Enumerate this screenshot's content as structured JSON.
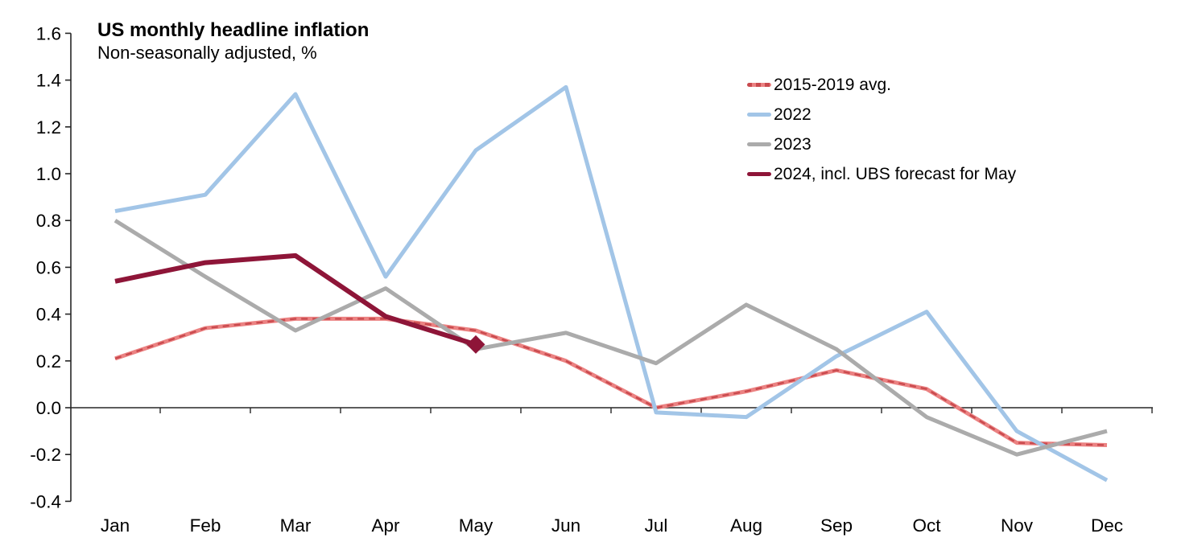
{
  "chart": {
    "title": "US monthly headline inflation",
    "subtitle": "Non-seasonally adjusted, %"
  },
  "chart_data": {
    "type": "line",
    "title": "US monthly headline inflation",
    "subtitle": "Non-seasonally adjusted, %",
    "categories": [
      "Jan",
      "Feb",
      "Mar",
      "Apr",
      "May",
      "Jun",
      "Jul",
      "Aug",
      "Sep",
      "Oct",
      "Nov",
      "Dec"
    ],
    "series": [
      {
        "name": "2015-2019 avg.",
        "color": "#EB8282",
        "overlay_color": "#C94A4E",
        "line_style": "solid-with-dash-overlay",
        "values": [
          0.21,
          0.34,
          0.38,
          0.38,
          0.33,
          0.2,
          0.0,
          0.07,
          0.16,
          0.08,
          -0.15,
          -0.16
        ]
      },
      {
        "name": "2022",
        "color": "#A2C5E7",
        "line_style": "solid",
        "values": [
          0.84,
          0.91,
          1.34,
          0.56,
          1.1,
          1.37,
          -0.02,
          -0.04,
          0.22,
          0.41,
          -0.1,
          -0.31
        ]
      },
      {
        "name": "2023",
        "color": "#ABABAB",
        "line_style": "solid",
        "values": [
          0.8,
          0.56,
          0.33,
          0.51,
          0.25,
          0.32,
          0.19,
          0.44,
          0.25,
          -0.04,
          -0.2,
          -0.1
        ]
      },
      {
        "name": "2024, incl. UBS forecast for May",
        "color": "#8E1538",
        "line_style": "solid",
        "marker_last": "diamond",
        "values": [
          0.54,
          0.62,
          0.65,
          0.39,
          0.27
        ]
      }
    ],
    "ylim": [
      -0.4,
      1.6
    ],
    "ytick_step": 0.2,
    "ytick_labels": [
      "1.6",
      "1.4",
      "1.2",
      "1.0",
      "0.8",
      "0.6",
      "0.4",
      "0.2",
      "0.0",
      "-0.2",
      "-0.4"
    ],
    "grid": false,
    "legend_position": "top-right",
    "axis_color": "#262626",
    "zero_axis": true
  }
}
